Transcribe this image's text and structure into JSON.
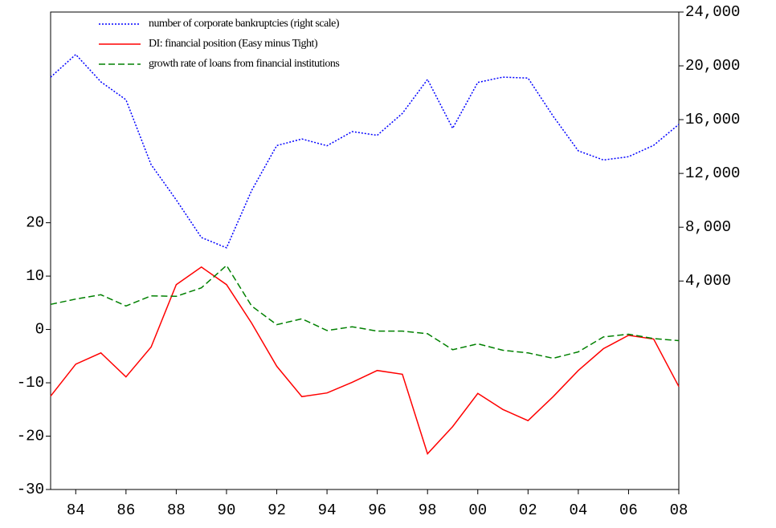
{
  "chart_data": {
    "type": "line",
    "x": [
      1983,
      1984,
      1985,
      1986,
      1987,
      1988,
      1989,
      1990,
      1991,
      1992,
      1993,
      1994,
      1995,
      1996,
      1997,
      1998,
      1999,
      2000,
      2001,
      2002,
      2003,
      2004,
      2005,
      2006,
      2007,
      2008
    ],
    "xlim": [
      1983,
      2008
    ],
    "xticks": [
      {
        "value": 1984,
        "label": "84"
      },
      {
        "value": 1986,
        "label": "86"
      },
      {
        "value": 1988,
        "label": "88"
      },
      {
        "value": 1990,
        "label": "90"
      },
      {
        "value": 1992,
        "label": "92"
      },
      {
        "value": 1994,
        "label": "94"
      },
      {
        "value": 1996,
        "label": "96"
      },
      {
        "value": 1998,
        "label": "98"
      },
      {
        "value": 2000,
        "label": "00"
      },
      {
        "value": 2002,
        "label": "02"
      },
      {
        "value": 2004,
        "label": "04"
      },
      {
        "value": 2006,
        "label": "06"
      },
      {
        "value": 2008,
        "label": "08"
      }
    ],
    "ylim": [
      -30,
      59.5
    ],
    "yticks": [
      -30,
      -20,
      -10,
      0,
      10,
      20
    ],
    "y2lim": [
      -11500,
      24000
    ],
    "y2ticks": [
      {
        "value": 4000,
        "label": "4,000"
      },
      {
        "value": 8000,
        "label": "8,000"
      },
      {
        "value": 12000,
        "label": "12,000"
      },
      {
        "value": 16000,
        "label": "16,000"
      },
      {
        "value": 20000,
        "label": "20,000"
      },
      {
        "value": 24000,
        "label": "24,000"
      }
    ],
    "legend": "top-left",
    "series": [
      {
        "name": "number of corporate bankruptcies (right scale)",
        "color": "#0000ff",
        "dash": "dotted",
        "axis": "y2",
        "values": [
          19155,
          20841,
          18812,
          17476,
          12655,
          10032,
          7234,
          6468,
          10723,
          14069,
          14564,
          14061,
          15108,
          14834,
          16464,
          18988,
          15352,
          18769,
          19164,
          19087,
          16255,
          13679,
          12998,
          13245,
          14091,
          15646
        ]
      },
      {
        "name": "DI: financial position (Easy minus Tight)",
        "color": "#ff0000",
        "dash": "solid",
        "values": [
          -12.5,
          -6.5,
          -4.4,
          -8.9,
          -3.3,
          8.4,
          11.7,
          8.4,
          1.2,
          -6.9,
          -12.6,
          -11.9,
          -9.9,
          -7.7,
          -8.4,
          -23.3,
          -18.2,
          -12.0,
          -15.0,
          -17.1,
          -12.6,
          -7.7,
          -3.6,
          -1.1,
          -1.8,
          -10.7
        ]
      },
      {
        "name": "growth rate of loans from financial institutions",
        "color": "#008000",
        "dash": "dashed",
        "values": [
          4.7,
          5.7,
          6.5,
          4.4,
          6.3,
          6.2,
          7.8,
          12.0,
          4.4,
          0.9,
          2.0,
          -0.2,
          0.5,
          -0.3,
          -0.3,
          -0.8,
          -3.8,
          -2.7,
          -3.9,
          -4.4,
          -5.4,
          -4.2,
          -1.4,
          -0.9,
          -1.7,
          -2.1
        ]
      }
    ]
  }
}
